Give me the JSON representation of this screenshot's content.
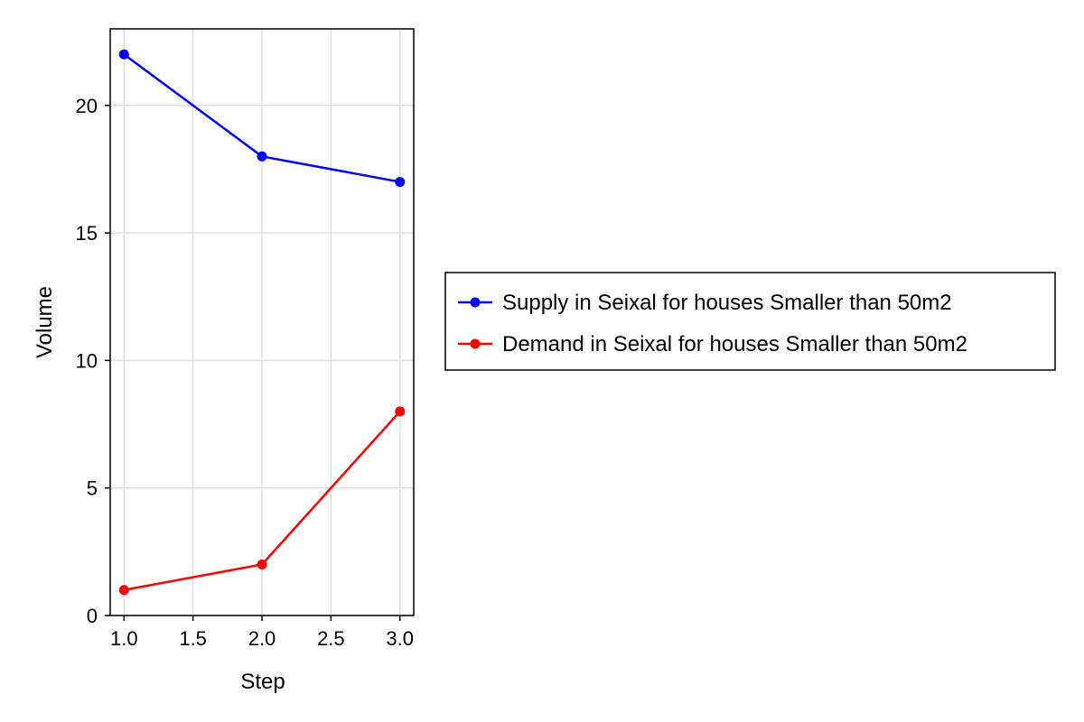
{
  "chart_data": {
    "type": "line",
    "title": "",
    "xlabel": "Step",
    "ylabel": "Volume",
    "xlim": [
      0.9,
      3.1
    ],
    "ylim": [
      0,
      23
    ],
    "xticks": [
      "1.0",
      "1.5",
      "2.0",
      "2.5",
      "3.0"
    ],
    "yticks": [
      "0",
      "5",
      "10",
      "15",
      "20"
    ],
    "grid": true,
    "legend_position": "right",
    "series": [
      {
        "name": "Supply in Seixal for houses Smaller than 50m2",
        "color": "#0000ff",
        "x": [
          1.0,
          2.0,
          3.0
        ],
        "y": [
          22,
          18,
          17
        ]
      },
      {
        "name": "Demand in Seixal for houses Smaller than 50m2",
        "color": "#ff0000",
        "x": [
          1.0,
          2.0,
          3.0
        ],
        "y": [
          1,
          2,
          8
        ]
      }
    ]
  }
}
